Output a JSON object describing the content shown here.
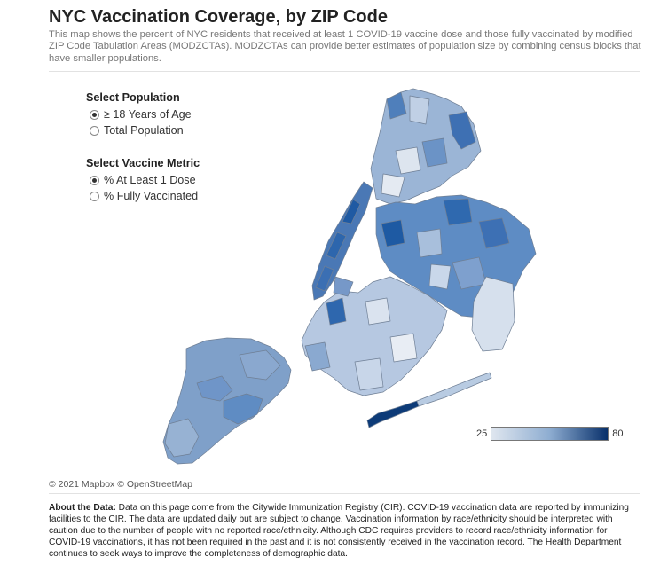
{
  "header": {
    "title": "NYC Vaccination Coverage, by ZIP Code",
    "description": "This map shows the percent of  NYC residents that received at least 1 COVID-19 vaccine dose and those fully vaccinated by modified ZIP Code Tabulation Areas (MODZCTAs). MODZCTAs can provide better estimates of population size by combining census blocks that have smaller populations."
  },
  "controls": {
    "population": {
      "heading": "Select Population",
      "options": [
        {
          "label": "≥ 18 Years of Age",
          "selected": true
        },
        {
          "label": "Total Population",
          "selected": false
        }
      ]
    },
    "metric": {
      "heading": "Select Vaccine Metric",
      "options": [
        {
          "label": "% At Least 1 Dose",
          "selected": true
        },
        {
          "label": "% Fully Vaccinated",
          "selected": false
        }
      ]
    }
  },
  "legend": {
    "min_label": "25",
    "max_label": "80",
    "colors": [
      "#dfe6ef",
      "#8eadd1",
      "#08306b"
    ]
  },
  "map": {
    "region": "New York City",
    "boroughs": [
      "Bronx",
      "Manhattan",
      "Queens",
      "Brooklyn",
      "Staten Island"
    ]
  },
  "attribution": "© 2021 Mapbox  © OpenStreetMap",
  "about": {
    "label": "About the Data:",
    "text": "  Data on this page come from the Citywide Immunization Registry (CIR). COVID-19 vaccination data are reported by immunizing facilities to the CIR. The data are updated daily but are subject to change. Vaccination information by race/ethnicity should be interpreted with caution due to the number of people with no reported race/ethnicity. Although CDC requires providers to record race/ethnicity information for COVID-19 vaccinations, it has not been required in the past and it is not consistently received in the vaccination record. The Health Department continues to seek ways to improve the completeness of demographic data."
  }
}
